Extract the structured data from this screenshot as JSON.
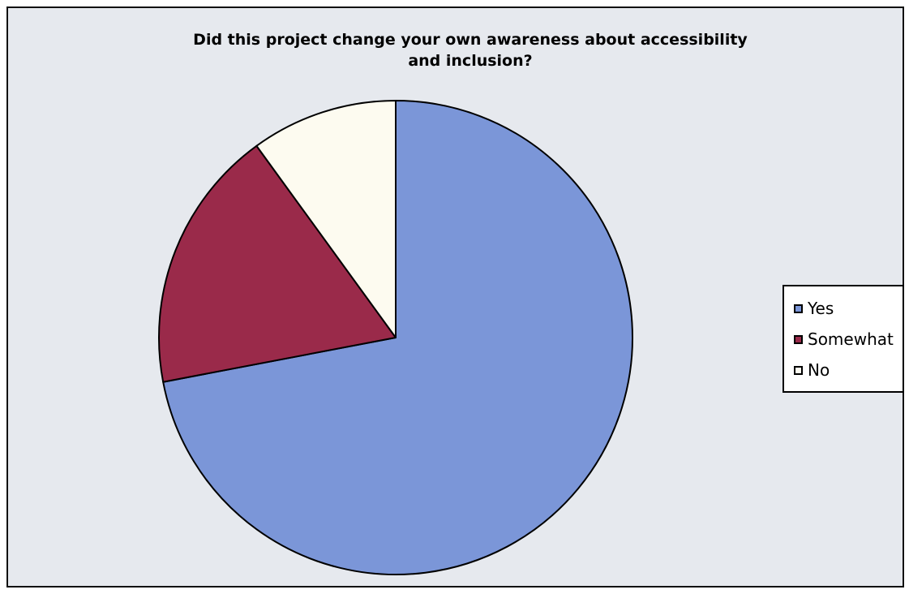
{
  "chart_data": {
    "type": "pie",
    "title": "Did this project change your own awareness about accessibility\nand inclusion?",
    "categories": [
      "Yes",
      "Somewhat",
      "No"
    ],
    "values": [
      72,
      18,
      10
    ],
    "colors": [
      "#7b96d8",
      "#9a2a4a",
      "#fdfbf0"
    ],
    "start_angle": "12 o'clock",
    "direction": "clockwise",
    "legend_placement": "right",
    "background_color": "#e6e9ee"
  }
}
